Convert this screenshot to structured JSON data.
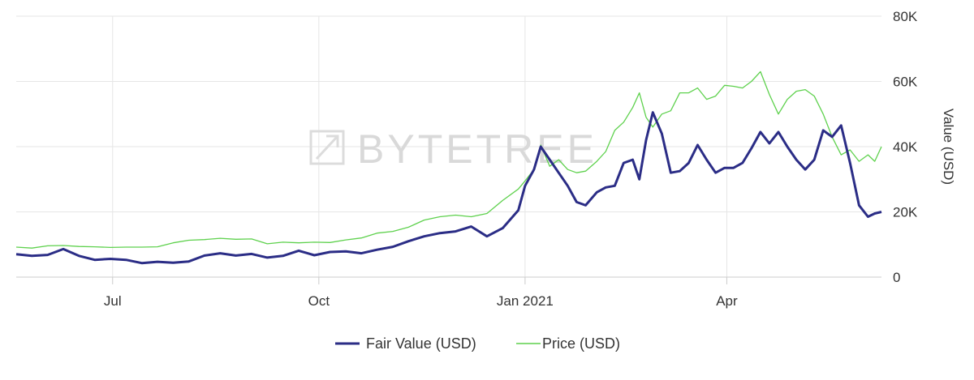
{
  "chart_data": {
    "type": "line",
    "watermark": "BYTETREE",
    "ylabel": "Value (USD)",
    "ylim": [
      0,
      80000
    ],
    "y_ticks": [
      {
        "value": 0,
        "label": "0"
      },
      {
        "value": 20000,
        "label": "20K"
      },
      {
        "value": 40000,
        "label": "40K"
      },
      {
        "value": 60000,
        "label": "60K"
      },
      {
        "value": 80000,
        "label": "80K"
      }
    ],
    "xlim": [
      "2020-05-19",
      "2021-06-09"
    ],
    "x_ticks": [
      {
        "value": "2020-07-01",
        "label": "Jul"
      },
      {
        "value": "2020-10-01",
        "label": "Oct"
      },
      {
        "value": "2021-01-01",
        "label": "Jan 2021"
      },
      {
        "value": "2021-04-01",
        "label": "Apr"
      }
    ],
    "grid": {
      "x": true,
      "y": true
    },
    "legend": "bottom-center",
    "series": [
      {
        "name": "Fair Value (USD)",
        "color": "#2b2d86",
        "points": [
          [
            "2020-05-19",
            7000
          ],
          [
            "2020-05-26",
            6500
          ],
          [
            "2020-06-02",
            6800
          ],
          [
            "2020-06-09",
            8600
          ],
          [
            "2020-06-16",
            6500
          ],
          [
            "2020-06-23",
            5300
          ],
          [
            "2020-06-30",
            5600
          ],
          [
            "2020-07-07",
            5300
          ],
          [
            "2020-07-14",
            4300
          ],
          [
            "2020-07-21",
            4700
          ],
          [
            "2020-07-28",
            4400
          ],
          [
            "2020-08-04",
            4800
          ],
          [
            "2020-08-11",
            6600
          ],
          [
            "2020-08-18",
            7300
          ],
          [
            "2020-08-25",
            6600
          ],
          [
            "2020-09-01",
            7100
          ],
          [
            "2020-09-08",
            6000
          ],
          [
            "2020-09-15",
            6500
          ],
          [
            "2020-09-22",
            8100
          ],
          [
            "2020-09-29",
            6700
          ],
          [
            "2020-10-06",
            7700
          ],
          [
            "2020-10-13",
            7900
          ],
          [
            "2020-10-20",
            7300
          ],
          [
            "2020-10-27",
            8400
          ],
          [
            "2020-11-03",
            9300
          ],
          [
            "2020-11-10",
            11000
          ],
          [
            "2020-11-17",
            12500
          ],
          [
            "2020-11-24",
            13500
          ],
          [
            "2020-12-01",
            14000
          ],
          [
            "2020-12-08",
            15500
          ],
          [
            "2020-12-15",
            12500
          ],
          [
            "2020-12-22",
            15000
          ],
          [
            "2020-12-29",
            20500
          ],
          [
            "2021-01-01",
            28000
          ],
          [
            "2021-01-05",
            33000
          ],
          [
            "2021-01-08",
            40000
          ],
          [
            "2021-01-12",
            36000
          ],
          [
            "2021-01-16",
            32000
          ],
          [
            "2021-01-20",
            28000
          ],
          [
            "2021-01-24",
            23000
          ],
          [
            "2021-01-28",
            22000
          ],
          [
            "2021-02-02",
            26000
          ],
          [
            "2021-02-06",
            27500
          ],
          [
            "2021-02-10",
            28000
          ],
          [
            "2021-02-14",
            35000
          ],
          [
            "2021-02-18",
            36000
          ],
          [
            "2021-02-21",
            30000
          ],
          [
            "2021-02-24",
            42000
          ],
          [
            "2021-02-27",
            50500
          ],
          [
            "2021-03-03",
            44000
          ],
          [
            "2021-03-07",
            32000
          ],
          [
            "2021-03-11",
            32500
          ],
          [
            "2021-03-15",
            35000
          ],
          [
            "2021-03-19",
            40500
          ],
          [
            "2021-03-23",
            36000
          ],
          [
            "2021-03-27",
            32000
          ],
          [
            "2021-03-31",
            33500
          ],
          [
            "2021-04-04",
            33500
          ],
          [
            "2021-04-08",
            35000
          ],
          [
            "2021-04-12",
            39500
          ],
          [
            "2021-04-16",
            44500
          ],
          [
            "2021-04-20",
            41000
          ],
          [
            "2021-04-24",
            44500
          ],
          [
            "2021-04-28",
            40000
          ],
          [
            "2021-05-02",
            36000
          ],
          [
            "2021-05-06",
            33000
          ],
          [
            "2021-05-10",
            36000
          ],
          [
            "2021-05-14",
            45000
          ],
          [
            "2021-05-18",
            43000
          ],
          [
            "2021-05-22",
            46500
          ],
          [
            "2021-05-26",
            35000
          ],
          [
            "2021-05-30",
            22000
          ],
          [
            "2021-06-03",
            18500
          ],
          [
            "2021-06-06",
            19500
          ],
          [
            "2021-06-09",
            20000
          ]
        ]
      },
      {
        "name": "Price (USD)",
        "color": "#5ed14d",
        "points": [
          [
            "2020-05-19",
            9200
          ],
          [
            "2020-05-26",
            8900
          ],
          [
            "2020-06-02",
            9600
          ],
          [
            "2020-06-09",
            9700
          ],
          [
            "2020-06-16",
            9400
          ],
          [
            "2020-06-23",
            9300
          ],
          [
            "2020-06-30",
            9100
          ],
          [
            "2020-07-07",
            9200
          ],
          [
            "2020-07-14",
            9200
          ],
          [
            "2020-07-21",
            9300
          ],
          [
            "2020-07-28",
            10500
          ],
          [
            "2020-08-04",
            11300
          ],
          [
            "2020-08-11",
            11500
          ],
          [
            "2020-08-18",
            11900
          ],
          [
            "2020-08-25",
            11600
          ],
          [
            "2020-09-01",
            11700
          ],
          [
            "2020-09-08",
            10200
          ],
          [
            "2020-09-15",
            10700
          ],
          [
            "2020-09-22",
            10500
          ],
          [
            "2020-09-29",
            10700
          ],
          [
            "2020-10-06",
            10600
          ],
          [
            "2020-10-13",
            11400
          ],
          [
            "2020-10-20",
            12000
          ],
          [
            "2020-10-27",
            13500
          ],
          [
            "2020-11-03",
            14000
          ],
          [
            "2020-11-10",
            15300
          ],
          [
            "2020-11-17",
            17500
          ],
          [
            "2020-11-24",
            18500
          ],
          [
            "2020-12-01",
            19000
          ],
          [
            "2020-12-08",
            18500
          ],
          [
            "2020-12-15",
            19500
          ],
          [
            "2020-12-22",
            23500
          ],
          [
            "2020-12-29",
            27000
          ],
          [
            "2021-01-01",
            29500
          ],
          [
            "2021-01-05",
            33000
          ],
          [
            "2021-01-08",
            40500
          ],
          [
            "2021-01-12",
            34000
          ],
          [
            "2021-01-16",
            36000
          ],
          [
            "2021-01-20",
            33000
          ],
          [
            "2021-01-24",
            32000
          ],
          [
            "2021-01-28",
            32500
          ],
          [
            "2021-02-02",
            35500
          ],
          [
            "2021-02-06",
            38500
          ],
          [
            "2021-02-10",
            45000
          ],
          [
            "2021-02-14",
            47500
          ],
          [
            "2021-02-18",
            52000
          ],
          [
            "2021-02-21",
            56500
          ],
          [
            "2021-02-24",
            49000
          ],
          [
            "2021-02-27",
            46000
          ],
          [
            "2021-03-03",
            50000
          ],
          [
            "2021-03-07",
            51000
          ],
          [
            "2021-03-11",
            56500
          ],
          [
            "2021-03-15",
            56500
          ],
          [
            "2021-03-19",
            58000
          ],
          [
            "2021-03-23",
            54500
          ],
          [
            "2021-03-27",
            55500
          ],
          [
            "2021-03-31",
            58800
          ],
          [
            "2021-04-04",
            58500
          ],
          [
            "2021-04-08",
            58000
          ],
          [
            "2021-04-12",
            60000
          ],
          [
            "2021-04-16",
            63000
          ],
          [
            "2021-04-20",
            56000
          ],
          [
            "2021-04-24",
            50000
          ],
          [
            "2021-04-28",
            54500
          ],
          [
            "2021-05-02",
            57000
          ],
          [
            "2021-05-06",
            57500
          ],
          [
            "2021-05-10",
            55500
          ],
          [
            "2021-05-14",
            50000
          ],
          [
            "2021-05-18",
            43000
          ],
          [
            "2021-05-22",
            37500
          ],
          [
            "2021-05-26",
            39000
          ],
          [
            "2021-05-30",
            35500
          ],
          [
            "2021-06-03",
            37500
          ],
          [
            "2021-06-06",
            35500
          ],
          [
            "2021-06-09",
            40000
          ]
        ]
      }
    ]
  }
}
